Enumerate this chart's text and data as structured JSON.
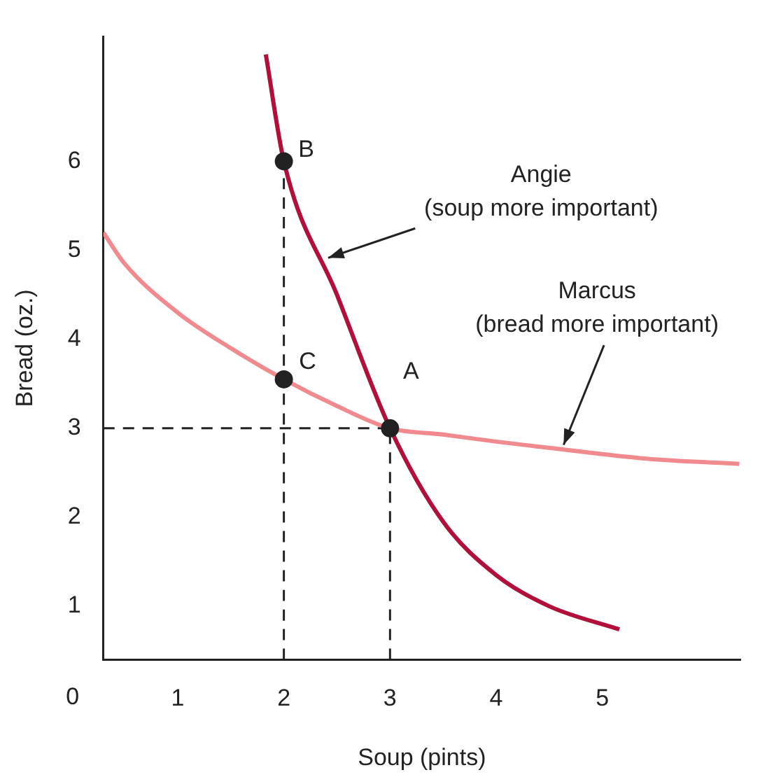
{
  "chart_data": {
    "type": "line",
    "xlabel": "Soup (pints)",
    "ylabel": "Bread (oz.)",
    "xlim": [
      0.3,
      6.3
    ],
    "ylim": [
      0.4,
      7.4
    ],
    "xticks": [
      1,
      2,
      3,
      4,
      5
    ],
    "yticks": [
      1,
      2,
      3,
      4,
      5,
      6
    ],
    "grid": false,
    "legend": false,
    "line_style": "solid",
    "marker": "none",
    "series": [
      {
        "color": "#f08a8f",
        "x": [
          0.3,
          0.5,
          1,
          1.5,
          2,
          2.5,
          3,
          3.5,
          4,
          4.5,
          5,
          5.5,
          6.29
        ],
        "values": [
          5.2,
          4.85,
          4.3,
          3.9,
          3.55,
          3.25,
          3.0,
          2.93,
          2.85,
          2.78,
          2.71,
          2.65,
          2.6
        ]
      },
      {
        "color": "#b0103a",
        "x": [
          1.83,
          2,
          2.5,
          3,
          3.5,
          4,
          4.5,
          5.16
        ],
        "values": [
          7.2,
          6,
          4.5,
          3,
          1.95,
          1.35,
          1.0,
          0.74
        ]
      },
      {
        "color": "#222222",
        "line_style": "dashed",
        "x": [
          2,
          2
        ],
        "values": [
          0.4,
          6
        ]
      },
      {
        "color": "#222222",
        "line_style": "dashed",
        "x": [
          3,
          3
        ],
        "values": [
          0.4,
          3
        ]
      },
      {
        "color": "#222222",
        "line_style": "dashed",
        "x": [
          0.3,
          3
        ],
        "values": [
          3,
          3
        ]
      },
      {
        "type": "scatter",
        "marker": "circle",
        "color": "#222222",
        "x": [
          2,
          2,
          3
        ],
        "values": [
          6,
          3.55,
          3
        ]
      }
    ],
    "annotations": [
      {
        "text": "B",
        "x": 2,
        "y": 6
      },
      {
        "text": "C",
        "x": 2,
        "y": 3.55
      },
      {
        "text": "A",
        "x": 3,
        "y": 3
      },
      {
        "text": "Angie\n(soup more important)",
        "x": 2.38,
        "y": 4.9
      },
      {
        "text": "Marcus\n(bread more important)",
        "x": 4.62,
        "y": 2.77
      },
      "0"
    ]
  }
}
